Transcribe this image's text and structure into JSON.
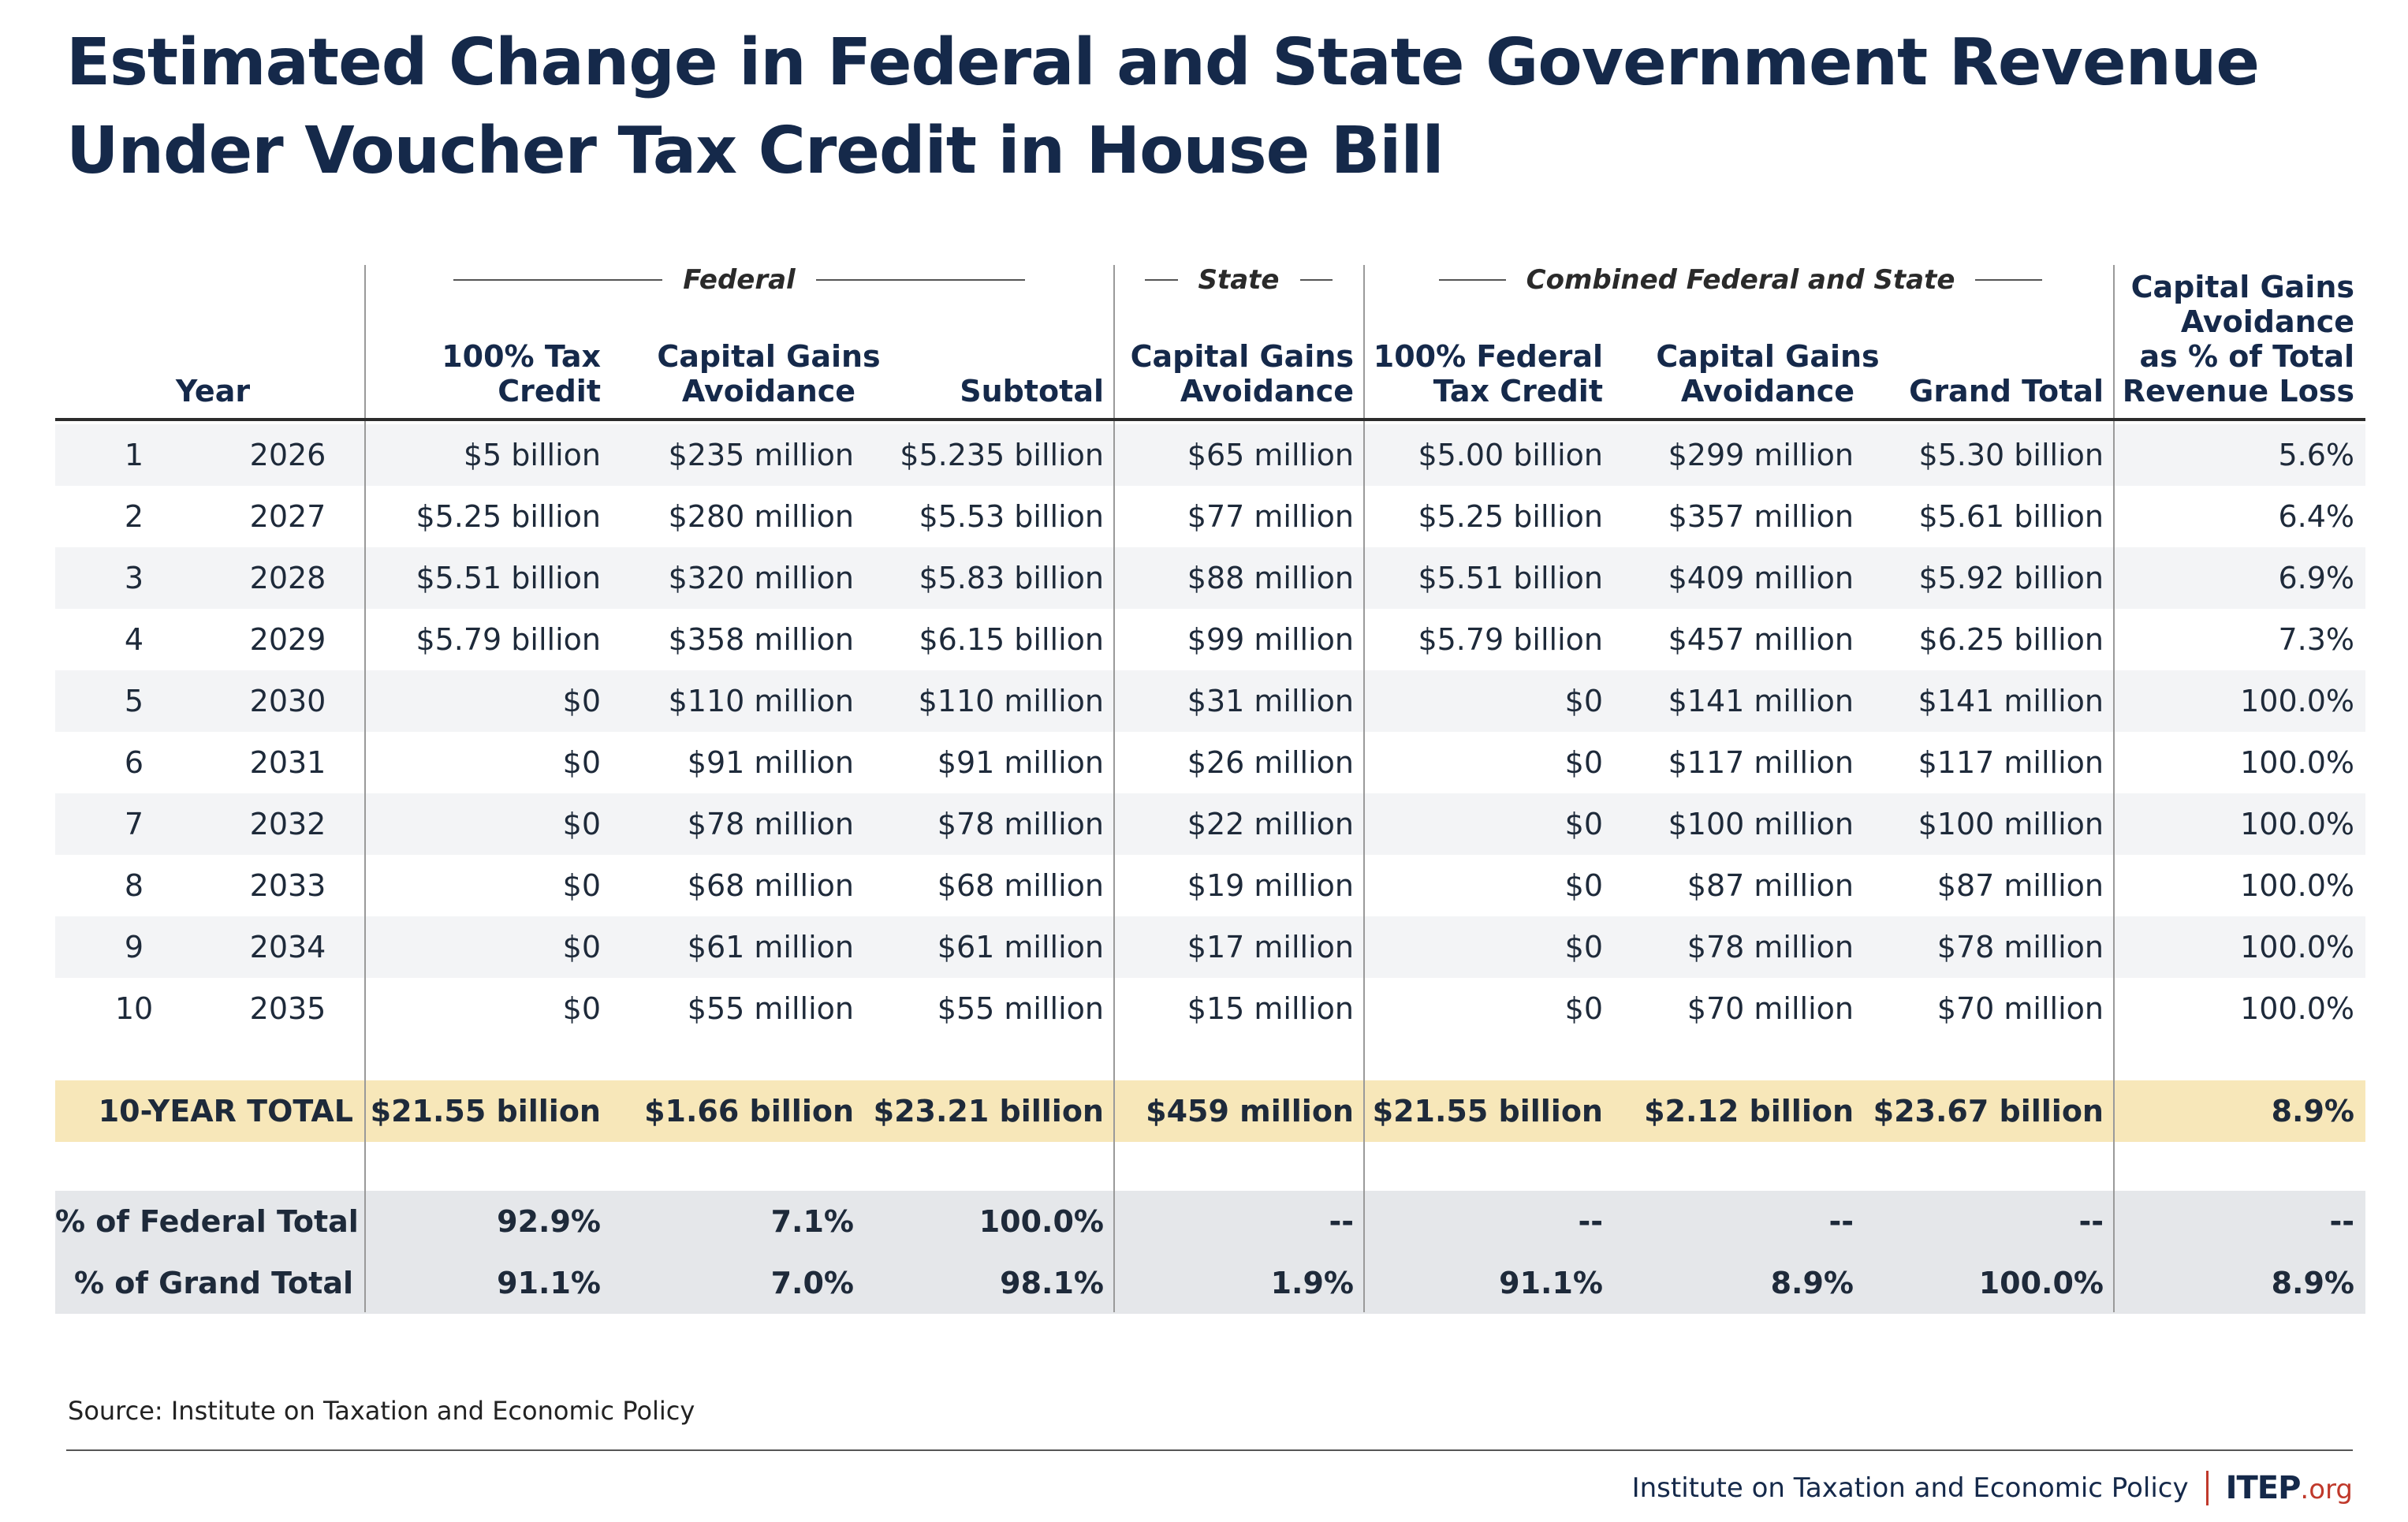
{
  "title": {
    "line1": "Estimated Change in Federal and State Government Revenue",
    "line2": "Under Voucher Tax Credit in House Bill"
  },
  "groups": {
    "federal": "Federal",
    "state": "State",
    "combined": "Combined Federal and State"
  },
  "columns": {
    "year": "Year",
    "fed_credit": [
      "100% Tax",
      "Credit"
    ],
    "fed_cga": [
      "Capital Gains",
      "Avoidance"
    ],
    "fed_subtotal": "Subtotal",
    "state_cga": [
      "Capital Gains",
      "Avoidance"
    ],
    "comb_credit": [
      "100% Federal",
      "Tax Credit"
    ],
    "comb_cga": [
      "Capital Gains",
      "Avoidance"
    ],
    "grand_total": "Grand Total",
    "pct_loss": [
      "Capital Gains",
      "Avoidance",
      "as % of Total",
      "Revenue Loss"
    ]
  },
  "chart_data": {
    "type": "table",
    "title": "Estimated Change in Federal and State Government Revenue Under Voucher Tax Credit in House Bill",
    "rows": [
      [
        "1",
        "2026",
        "$5 billion",
        "$235 million",
        "$5.235 billion",
        "$65 million",
        "$5.00 billion",
        "$299 million",
        "$5.30 billion",
        "5.6%"
      ],
      [
        "2",
        "2027",
        "$5.25 billion",
        "$280 million",
        "$5.53 billion",
        "$77 million",
        "$5.25 billion",
        "$357 million",
        "$5.61 billion",
        "6.4%"
      ],
      [
        "3",
        "2028",
        "$5.51 billion",
        "$320 million",
        "$5.83 billion",
        "$88 million",
        "$5.51 billion",
        "$409 million",
        "$5.92 billion",
        "6.9%"
      ],
      [
        "4",
        "2029",
        "$5.79 billion",
        "$358 million",
        "$6.15 billion",
        "$99 million",
        "$5.79 billion",
        "$457 million",
        "$6.25 billion",
        "7.3%"
      ],
      [
        "5",
        "2030",
        "$0",
        "$110 million",
        "$110 million",
        "$31 million",
        "$0",
        "$141 million",
        "$141 million",
        "100.0%"
      ],
      [
        "6",
        "2031",
        "$0",
        "$91 million",
        "$91 million",
        "$26 million",
        "$0",
        "$117 million",
        "$117 million",
        "100.0%"
      ],
      [
        "7",
        "2032",
        "$0",
        "$78 million",
        "$78 million",
        "$22 million",
        "$0",
        "$100 million",
        "$100 million",
        "100.0%"
      ],
      [
        "8",
        "2033",
        "$0",
        "$68 million",
        "$68 million",
        "$19 million",
        "$0",
        "$87 million",
        "$87 million",
        "100.0%"
      ],
      [
        "9",
        "2034",
        "$0",
        "$61 million",
        "$61 million",
        "$17 million",
        "$0",
        "$78 million",
        "$78 million",
        "100.0%"
      ],
      [
        "10",
        "2035",
        "$0",
        "$55 million",
        "$55 million",
        "$15 million",
        "$0",
        "$70 million",
        "$70 million",
        "100.0%"
      ]
    ],
    "total": [
      "10-YEAR TOTAL",
      "$21.55 billion",
      "$1.66 billion",
      "$23.21 billion",
      "$459 million",
      "$21.55 billion",
      "$2.12 billion",
      "$23.67 billion",
      "8.9%"
    ],
    "pct_federal": [
      "% of Federal Total",
      "92.9%",
      "7.1%",
      "100.0%",
      "--",
      "--",
      "--",
      "--",
      "--"
    ],
    "pct_grand": [
      "% of Grand Total",
      "91.1%",
      "7.0%",
      "98.1%",
      "1.9%",
      "91.1%",
      "8.9%",
      "100.0%",
      "8.9%"
    ]
  },
  "colors": {
    "title": "#15294a",
    "stripe": "#f3f4f6",
    "total_band": "#f7e7b9",
    "summary_band": "#e5e7ea",
    "accent": "#c0392b"
  },
  "source": "Source: Institute on Taxation and Economic Policy",
  "footer": {
    "org_name": "Institute on Taxation and Economic Policy",
    "logo_main": "ITEP",
    "logo_suffix": ".org"
  }
}
